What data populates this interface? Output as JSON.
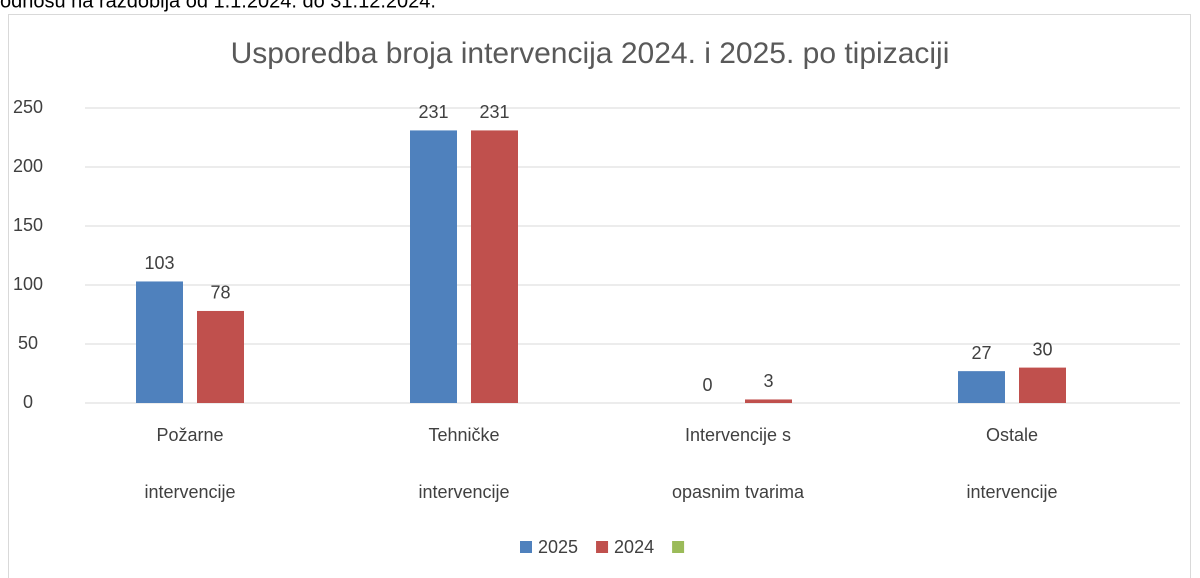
{
  "caption": "odnosu na razdoblja od 1.1.2024. do 31.12.2024.",
  "chart_data": {
    "type": "bar",
    "title": "Usporedba broja intervencija 2024. i 2025. po tipizaciji",
    "categories": [
      [
        "Požarne",
        "intervencije"
      ],
      [
        "Tehničke",
        "intervencije"
      ],
      [
        "Intervencije s",
        "opasnim tvarima"
      ],
      [
        "Ostale",
        "intervencije"
      ]
    ],
    "series": [
      {
        "name": "2025",
        "color": "#4f81bd",
        "values": [
          103,
          231,
          0,
          27
        ]
      },
      {
        "name": "2024",
        "color": "#c0504d",
        "values": [
          78,
          231,
          3,
          30
        ]
      },
      {
        "name": null,
        "color": "#9bbb59",
        "values": [
          null,
          null,
          null,
          null
        ]
      }
    ],
    "ylim": [
      0,
      250
    ],
    "yticks": [
      0,
      50,
      100,
      150,
      200,
      250
    ],
    "grid": true,
    "legend": "bottom"
  }
}
